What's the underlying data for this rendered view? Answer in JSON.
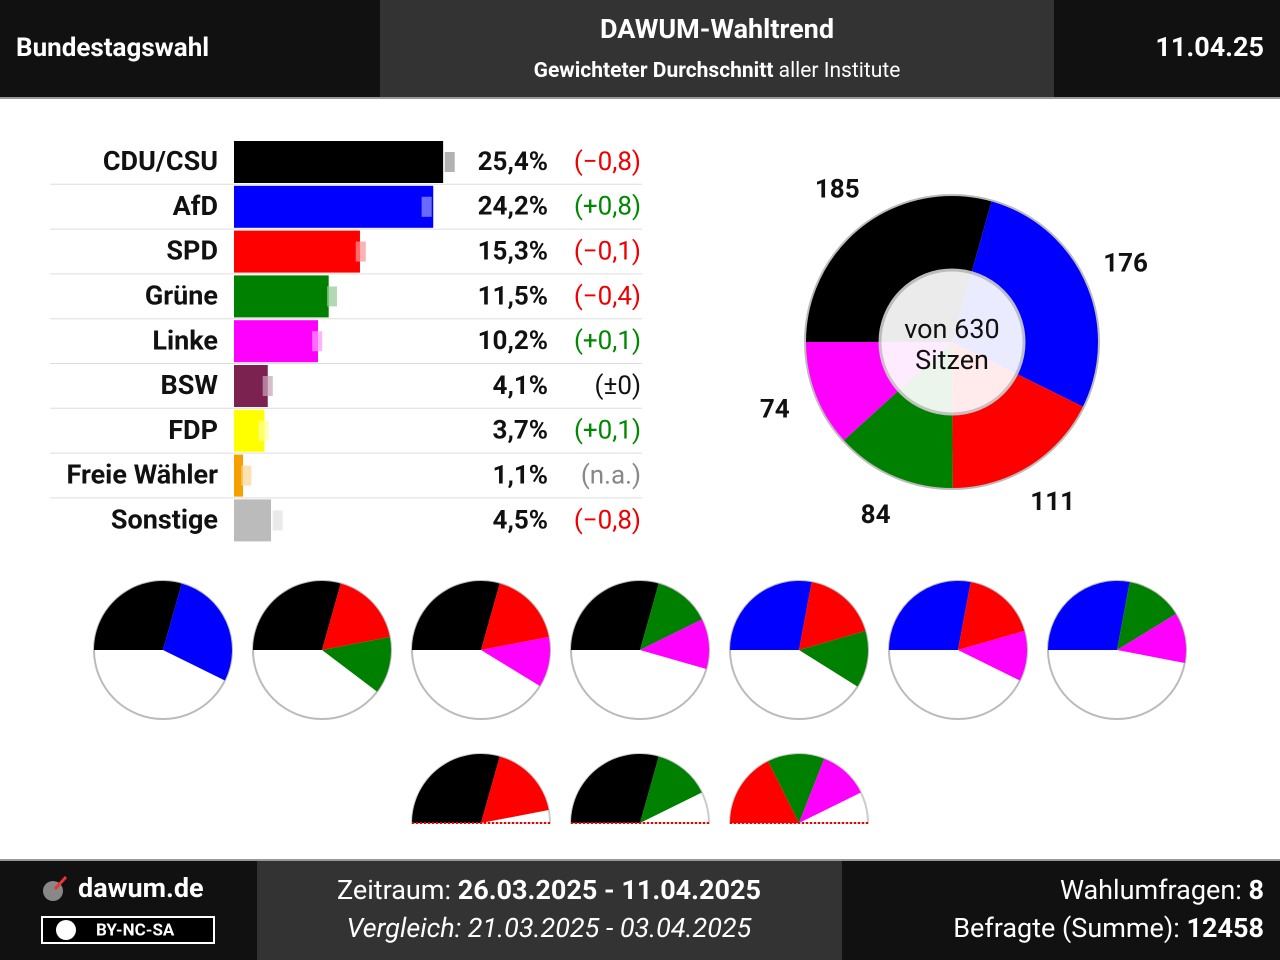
{
  "header": {
    "left": "Bundestagswahl",
    "title": "DAWUM-Wahltrend",
    "subtitle_bold": "Gewichteter Durchschnitt",
    "subtitle_rest": "aller Institute",
    "date": "11.04.25"
  },
  "chart_data": [
    {
      "type": "bar",
      "categories": [
        "CDU/CSU",
        "AfD",
        "SPD",
        "Grüne",
        "Linke",
        "BSW",
        "FDP",
        "Freie Wähler",
        "Sonstige"
      ],
      "colors": [
        "#000000",
        "#0000ff",
        "#ff0000",
        "#008000",
        "#ff00ff",
        "#7b2250",
        "#ffff00",
        "#f5a000",
        "#bbbbbb"
      ],
      "values": [
        25.4,
        24.2,
        15.3,
        11.5,
        10.2,
        4.1,
        3.7,
        1.1,
        4.5
      ],
      "value_labels": [
        "25,4%",
        "24,2%",
        "15,3%",
        "11,5%",
        "10,2%",
        "4,1%",
        "3,7%",
        "1,1%",
        "4,5%"
      ],
      "previous": [
        26.2,
        23.4,
        15.4,
        11.9,
        10.1,
        4.1,
        3.6,
        1.5,
        5.3
      ],
      "changes": [
        -0.8,
        0.8,
        -0.1,
        -0.4,
        0.1,
        0,
        0.1,
        null,
        -0.8
      ],
      "change_labels": [
        "(−0,8)",
        "(+0,8)",
        "(−0,1)",
        "(−0,4)",
        "(+0,1)",
        "(±0)",
        "(+0,1)",
        "(n.a.)",
        "(−0,8)"
      ],
      "xlim": [
        0,
        30
      ]
    },
    {
      "type": "donut",
      "categories": [
        "CDU/CSU",
        "AfD",
        "SPD",
        "Grüne",
        "Linke"
      ],
      "colors": [
        "#000000",
        "#0000ff",
        "#ff0000",
        "#008000",
        "#ff00ff"
      ],
      "values": [
        185,
        176,
        111,
        84,
        74
      ],
      "total": 630,
      "center_label": [
        "von 630",
        "Sitzen"
      ]
    },
    {
      "type": "coalitions",
      "pies": [
        [
          0,
          1
        ],
        [
          0,
          2,
          3
        ],
        [
          0,
          2,
          4
        ],
        [
          0,
          3,
          4
        ],
        [
          1,
          2,
          3
        ],
        [
          1,
          2,
          4
        ],
        [
          1,
          3,
          4
        ]
      ],
      "half_pies": [
        [
          0,
          2
        ],
        [
          0,
          3
        ],
        [
          2,
          3,
          4
        ]
      ]
    }
  ],
  "footer": {
    "site": "dawum.de",
    "license": "BY-NC-SA",
    "period_label": "Zeitraum:",
    "period": "26.03.2025 - 11.04.2025",
    "comparison": "Vergleich: 21.03.2025 - 03.04.2025",
    "polls_label": "Wahlumfragen:",
    "polls": 8,
    "respondents_label": "Befragte (Summe):",
    "respondents": 12458
  }
}
